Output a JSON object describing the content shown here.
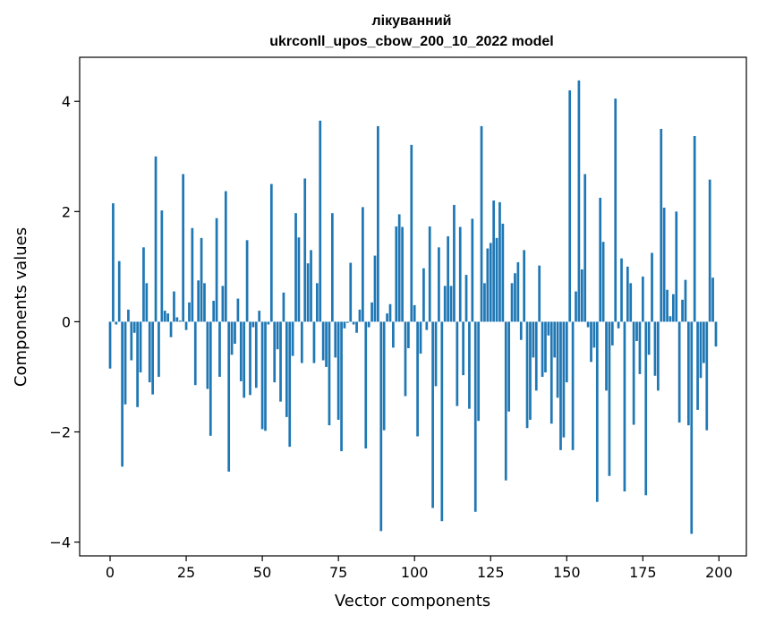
{
  "chart_data": {
    "type": "bar",
    "title": "лікуванний",
    "subtitle": "ukrconll_upos_cbow_200_10_2022 model",
    "xlabel": "Vector components",
    "ylabel": "Components values",
    "xlim": [
      -10,
      209
    ],
    "ylim": [
      -4.25,
      4.8
    ],
    "xticks": [
      0,
      25,
      50,
      75,
      100,
      125,
      150,
      175,
      200
    ],
    "yticks": [
      -4,
      -2,
      0,
      2,
      4
    ],
    "xtick_labels": [
      "0",
      "25",
      "50",
      "75",
      "100",
      "125",
      "150",
      "175",
      "200"
    ],
    "ytick_labels": [
      "−4",
      "−2",
      "0",
      "2",
      "4"
    ],
    "grid": false,
    "bar_color": "#1f77b4",
    "x": [
      0,
      1,
      2,
      3,
      4,
      5,
      6,
      7,
      8,
      9,
      10,
      11,
      12,
      13,
      14,
      15,
      16,
      17,
      18,
      19,
      20,
      21,
      22,
      23,
      24,
      25,
      26,
      27,
      28,
      29,
      30,
      31,
      32,
      33,
      34,
      35,
      36,
      37,
      38,
      39,
      40,
      41,
      42,
      43,
      44,
      45,
      46,
      47,
      48,
      49,
      50,
      51,
      52,
      53,
      54,
      55,
      56,
      57,
      58,
      59,
      60,
      61,
      62,
      63,
      64,
      65,
      66,
      67,
      68,
      69,
      70,
      71,
      72,
      73,
      74,
      75,
      76,
      77,
      78,
      79,
      80,
      81,
      82,
      83,
      84,
      85,
      86,
      87,
      88,
      89,
      90,
      91,
      92,
      93,
      94,
      95,
      96,
      97,
      98,
      99,
      100,
      101,
      102,
      103,
      104,
      105,
      106,
      107,
      108,
      109,
      110,
      111,
      112,
      113,
      114,
      115,
      116,
      117,
      118,
      119,
      120,
      121,
      122,
      123,
      124,
      125,
      126,
      127,
      128,
      129,
      130,
      131,
      132,
      133,
      134,
      135,
      136,
      137,
      138,
      139,
      140,
      141,
      142,
      143,
      144,
      145,
      146,
      147,
      148,
      149,
      150,
      151,
      152,
      153,
      154,
      155,
      156,
      157,
      158,
      159,
      160,
      161,
      162,
      163,
      164,
      165,
      166,
      167,
      168,
      169,
      170,
      171,
      172,
      173,
      174,
      175,
      176,
      177,
      178,
      179,
      180,
      181,
      182,
      183,
      184,
      185,
      186,
      187,
      188,
      189,
      190,
      191,
      192,
      193,
      194,
      195,
      196,
      197,
      198,
      199
    ],
    "values": [
      -0.85,
      2.15,
      -0.05,
      1.1,
      -2.63,
      -1.5,
      0.22,
      -0.7,
      -0.2,
      -1.55,
      -0.92,
      1.35,
      0.7,
      -1.1,
      -1.32,
      3.0,
      -1.0,
      2.02,
      0.2,
      0.15,
      -0.28,
      0.55,
      0.08,
      0.02,
      2.68,
      -0.15,
      0.35,
      1.7,
      -1.15,
      0.75,
      1.52,
      0.7,
      -1.22,
      -2.07,
      0.38,
      1.88,
      -1.0,
      0.65,
      2.37,
      -2.72,
      -0.6,
      -0.4,
      0.42,
      -1.08,
      -1.38,
      1.48,
      -1.33,
      -0.1,
      -1.2,
      0.2,
      -1.95,
      -1.98,
      -0.05,
      2.5,
      -1.1,
      -0.5,
      -1.45,
      0.53,
      -1.73,
      -2.27,
      -0.62,
      1.97,
      1.53,
      -0.75,
      2.6,
      1.06,
      1.3,
      -0.75,
      0.7,
      3.65,
      -0.7,
      -0.82,
      -1.88,
      1.97,
      -0.65,
      -1.78,
      -2.35,
      -0.12,
      -0.02,
      1.07,
      -0.05,
      -0.2,
      0.22,
      2.08,
      -2.3,
      -0.1,
      0.35,
      1.2,
      3.55,
      -3.8,
      -1.97,
      0.15,
      0.32,
      -0.47,
      1.73,
      1.95,
      1.72,
      -1.35,
      -0.48,
      3.21,
      0.3,
      -2.08,
      -0.58,
      0.97,
      -0.15,
      1.73,
      -3.38,
      -1.17,
      1.35,
      -3.62,
      0.65,
      1.55,
      0.65,
      2.12,
      -1.53,
      1.72,
      -0.97,
      0.85,
      -1.58,
      1.87,
      -3.45,
      -1.8,
      3.55,
      0.7,
      1.33,
      1.43,
      2.2,
      1.52,
      2.17,
      1.78,
      -2.88,
      -1.63,
      0.7,
      0.88,
      1.08,
      -0.33,
      1.3,
      -1.93,
      -1.78,
      -0.65,
      -1.25,
      1.02,
      -1.0,
      -0.92,
      -0.25,
      -1.85,
      -0.65,
      -1.38,
      -2.33,
      -2.1,
      -1.1,
      4.2,
      -2.33,
      0.55,
      4.38,
      0.95,
      2.68,
      -0.1,
      -0.73,
      -0.47,
      -3.27,
      2.25,
      1.45,
      -1.25,
      -2.8,
      -0.43,
      4.05,
      -0.12,
      1.15,
      -3.08,
      1.0,
      0.7,
      -1.87,
      -0.35,
      -0.95,
      0.82,
      -3.15,
      -0.6,
      1.25,
      -0.98,
      -1.25,
      3.5,
      2.07,
      0.58,
      0.1,
      0.5,
      2.0,
      -1.83,
      0.4,
      0.76,
      -1.88,
      -3.85,
      3.37,
      -1.6,
      -1.02,
      -0.75,
      -1.97,
      2.58,
      0.8,
      -0.45
    ]
  }
}
